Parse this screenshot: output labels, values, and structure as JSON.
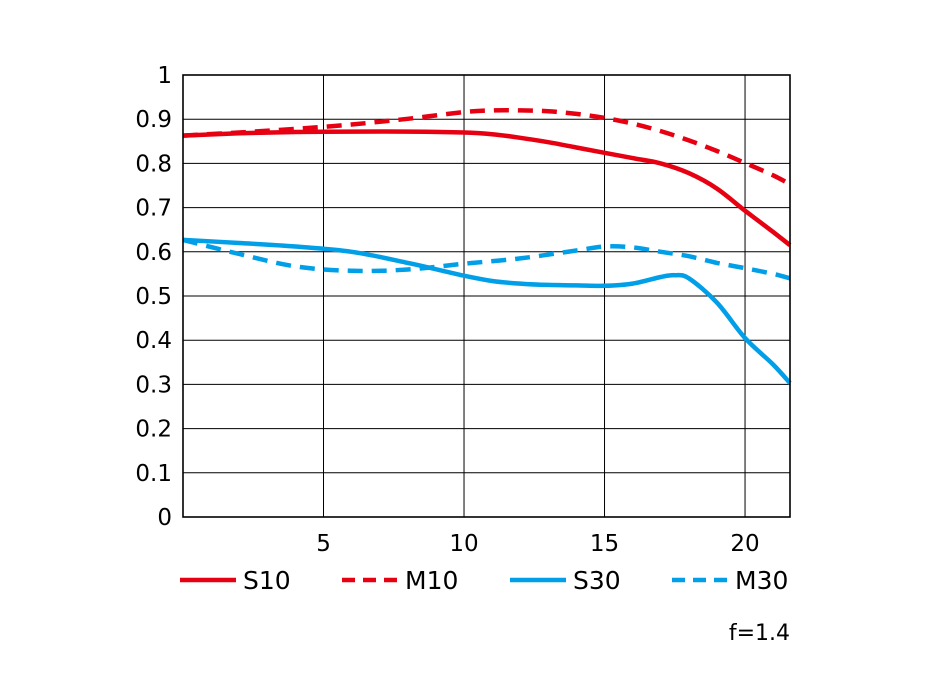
{
  "chart_data": {
    "type": "line",
    "title": "",
    "xlabel": "",
    "ylabel": "",
    "xlim": [
      0,
      21.6
    ],
    "ylim": [
      0,
      1
    ],
    "x_ticks": [
      5,
      10,
      15,
      20
    ],
    "y_ticks": [
      0,
      0.1,
      0.2,
      0.3,
      0.4,
      0.5,
      0.6,
      0.7,
      0.8,
      0.9,
      1
    ],
    "grid": true,
    "legend_position": "bottom",
    "annotation": "f=1.4",
    "series": [
      {
        "name": "S10",
        "color": "#e60012",
        "style": "solid",
        "x": [
          0,
          2,
          4,
          6,
          8,
          10,
          11,
          12,
          13,
          14,
          15,
          16,
          17,
          18,
          19,
          20,
          21,
          21.6
        ],
        "y": [
          0.863,
          0.868,
          0.871,
          0.872,
          0.872,
          0.87,
          0.866,
          0.858,
          0.848,
          0.836,
          0.824,
          0.812,
          0.8,
          0.778,
          0.743,
          0.693,
          0.645,
          0.615
        ]
      },
      {
        "name": "M10",
        "color": "#e60012",
        "style": "dashed",
        "x": [
          0,
          2,
          4,
          6,
          8,
          10,
          11,
          12,
          13,
          14,
          15,
          16,
          17,
          18,
          19,
          20,
          21,
          21.6
        ],
        "y": [
          0.863,
          0.87,
          0.878,
          0.888,
          0.901,
          0.916,
          0.92,
          0.92,
          0.918,
          0.912,
          0.903,
          0.89,
          0.873,
          0.852,
          0.828,
          0.801,
          0.773,
          0.753
        ]
      },
      {
        "name": "S30",
        "color": "#009fe8",
        "style": "solid",
        "x": [
          0,
          2,
          4,
          6,
          8,
          10,
          11,
          12,
          13,
          14,
          15,
          16,
          17,
          17.5,
          18,
          19,
          20,
          21,
          21.6
        ],
        "y": [
          0.627,
          0.62,
          0.612,
          0.6,
          0.575,
          0.546,
          0.534,
          0.528,
          0.525,
          0.524,
          0.523,
          0.528,
          0.543,
          0.547,
          0.54,
          0.485,
          0.405,
          0.345,
          0.303
        ]
      },
      {
        "name": "M30",
        "color": "#009fe8",
        "style": "dashed",
        "x": [
          0,
          2,
          4,
          6,
          8,
          10,
          12,
          14,
          15,
          16,
          17,
          18,
          19,
          20,
          21,
          21.6
        ],
        "y": [
          0.627,
          0.595,
          0.567,
          0.557,
          0.56,
          0.573,
          0.585,
          0.603,
          0.612,
          0.61,
          0.6,
          0.59,
          0.575,
          0.563,
          0.55,
          0.54
        ]
      }
    ]
  }
}
